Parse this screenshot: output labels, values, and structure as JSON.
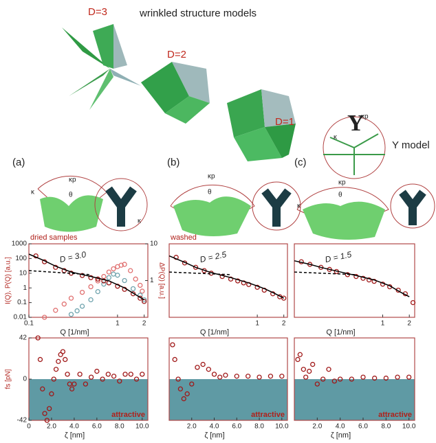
{
  "illustration": {
    "title": "wrinkled structure models",
    "models": [
      "D=3",
      "D=2",
      "D=1"
    ],
    "y_model": "Y model",
    "y_glyph": "Y",
    "panels": [
      "(a)",
      "(b)",
      "(c)"
    ],
    "angle_labels": [
      "κp",
      "θ",
      "κ"
    ]
  },
  "chart_data": [
    {
      "type": "scatter",
      "subtitle": "dried samples",
      "annotation": "D = 3.0",
      "xlabel": "Q [1/nm]",
      "ylabel": "I(Q), P(Q) [a.u.]",
      "y2label": "ΔP(Q) [a.u.]",
      "log_x": true,
      "log_y": true,
      "xlim": [
        0.1,
        2.2
      ],
      "ylim": [
        0.01,
        1000
      ],
      "xticks": [
        0.1,
        1,
        2
      ],
      "yticks": [
        1000,
        100,
        10,
        1,
        0.1,
        0.01
      ],
      "y2lim": [
        0.1,
        10
      ],
      "y2ticks": [
        10,
        1
      ],
      "series": [
        {
          "style": "markers",
          "color": "#e07070",
          "x": [
            0.15,
            0.2,
            0.25,
            0.3,
            0.4,
            0.5,
            0.6,
            0.7,
            0.8,
            0.9,
            1.0,
            1.1,
            1.2,
            1.4,
            1.6,
            1.8,
            1.9
          ],
          "values": [
            0.01,
            0.03,
            0.08,
            0.2,
            0.5,
            1.2,
            3,
            6,
            12,
            20,
            28,
            35,
            40,
            15,
            4,
            1.5,
            0.6
          ]
        },
        {
          "style": "markers",
          "axis": "y2",
          "color": "#6fa3ad",
          "x": [
            0.3,
            0.35,
            0.4,
            0.5,
            0.6,
            0.7,
            0.8,
            0.9,
            1.0,
            1.2,
            1.5,
            1.8,
            2.0
          ],
          "values": [
            0.12,
            0.15,
            0.2,
            0.3,
            0.5,
            0.8,
            1.2,
            1.5,
            1.4,
            1.0,
            0.6,
            0.4,
            0.3
          ]
        },
        {
          "style": "markers",
          "color": "#a01818",
          "x": [
            0.12,
            0.15,
            0.2,
            0.25,
            0.3,
            0.4,
            0.5,
            0.6,
            0.7,
            0.8,
            1.0,
            1.2,
            1.5,
            1.8,
            2.0
          ],
          "values": [
            150,
            60,
            25,
            15,
            10,
            7,
            5,
            4,
            3,
            2.2,
            1.3,
            0.8,
            0.4,
            0.2,
            0.12
          ]
        },
        {
          "style": "line",
          "color": "#000000",
          "x": [
            0.1,
            0.15,
            0.2,
            0.3,
            0.5,
            0.8,
            1.2,
            1.6,
            2.0
          ],
          "values": [
            200,
            70,
            30,
            12,
            6,
            3,
            1,
            0.35,
            0.15
          ]
        },
        {
          "style": "dashed",
          "color": "#000000",
          "x": [
            0.1,
            0.5
          ],
          "values": [
            15,
            8
          ]
        }
      ]
    },
    {
      "type": "scatter",
      "subtitle": "washed",
      "annotation": "D = 2.5",
      "xlabel": "Q [1/nm]",
      "log_x": true,
      "log_y": true,
      "xlim": [
        0.1,
        2.2
      ],
      "ylim": [
        0.01,
        1000
      ],
      "xticks": [
        1,
        2
      ],
      "series": [
        {
          "style": "markers",
          "color": "#a01818",
          "x": [
            0.12,
            0.15,
            0.2,
            0.25,
            0.3,
            0.4,
            0.5,
            0.6,
            0.7,
            0.8,
            1.0,
            1.2,
            1.5,
            1.8,
            2.0
          ],
          "values": [
            120,
            50,
            25,
            15,
            10,
            6,
            4,
            3,
            2.2,
            1.7,
            1.1,
            0.7,
            0.4,
            0.25,
            0.2
          ]
        },
        {
          "style": "line",
          "color": "#000000",
          "x": [
            0.1,
            0.15,
            0.2,
            0.3,
            0.5,
            0.8,
            1.2,
            1.6,
            2.0
          ],
          "values": [
            150,
            55,
            25,
            11,
            5,
            2.2,
            0.9,
            0.4,
            0.2
          ]
        },
        {
          "style": "dashed",
          "color": "#000000",
          "x": [
            0.1,
            0.5
          ],
          "values": [
            12,
            8
          ]
        }
      ]
    },
    {
      "type": "scatter",
      "annotation": "D = 1.5",
      "xlabel": "Q [1/nm]",
      "log_x": true,
      "log_y": true,
      "xlim": [
        0.1,
        2.3
      ],
      "ylim": [
        0.01,
        1000
      ],
      "xticks": [
        1,
        2
      ],
      "series": [
        {
          "style": "markers",
          "color": "#a01818",
          "x": [
            0.12,
            0.15,
            0.2,
            0.25,
            0.3,
            0.4,
            0.5,
            0.6,
            0.7,
            0.8,
            1.0,
            1.2,
            1.5,
            1.8,
            2.2
          ],
          "values": [
            60,
            40,
            25,
            18,
            13,
            8,
            6,
            4.5,
            3.5,
            2.8,
            1.8,
            1.2,
            0.7,
            0.4,
            0.1
          ]
        },
        {
          "style": "line",
          "color": "#000000",
          "x": [
            0.1,
            0.15,
            0.2,
            0.3,
            0.5,
            0.8,
            1.2,
            1.6,
            2.0
          ],
          "values": [
            70,
            40,
            25,
            14,
            7,
            3.5,
            1.4,
            0.5,
            0.25
          ]
        },
        {
          "style": "dashed",
          "color": "#000000",
          "x": [
            0.1,
            0.5
          ],
          "values": [
            12,
            8
          ]
        }
      ]
    },
    {
      "type": "force",
      "annotation": "attractive",
      "xlabel": "ζ [nm]",
      "ylabel": "fs [pN]",
      "xlim": [
        0,
        10.5
      ],
      "ylim": [
        -42,
        42
      ],
      "xticks": [
        0,
        {
          "value": 2,
          "label": "2.0"
        },
        {
          "value": 4,
          "label": "4.0"
        },
        {
          "value": 6,
          "label": "6.0"
        },
        {
          "value": 8,
          "label": "8.0"
        },
        {
          "value": 10,
          "label": "10.0"
        }
      ],
      "yticks": [
        42,
        0,
        -42
      ],
      "series": [
        {
          "style": "markers",
          "color": "#a01818",
          "x": [
            0.8,
            1.0,
            1.2,
            1.4,
            1.6,
            1.8,
            2.0,
            2.2,
            2.4,
            2.6,
            2.8,
            3.0,
            3.2,
            3.4,
            3.6,
            3.8,
            4.0,
            4.5,
            5,
            5.5,
            6,
            6.5,
            7,
            7.5,
            8,
            8.5,
            9,
            9.5,
            10
          ],
          "values": [
            42,
            20,
            -10,
            -35,
            -42,
            -30,
            -15,
            0,
            10,
            18,
            25,
            28,
            20,
            5,
            -5,
            -10,
            -5,
            5,
            -5,
            2,
            8,
            0,
            5,
            3,
            -2,
            5,
            5,
            0,
            5
          ]
        }
      ]
    },
    {
      "type": "force",
      "annotation": "attractive",
      "xlabel": "ζ [nm]",
      "xlim": [
        0,
        10.5
      ],
      "ylim": [
        -42,
        42
      ],
      "xticks": [
        {
          "value": 2,
          "label": "2.0"
        },
        {
          "value": 4,
          "label": "4.0"
        },
        {
          "value": 6,
          "label": "6.0"
        },
        {
          "value": 8,
          "label": "8.0"
        },
        {
          "value": 10,
          "label": "10.0"
        }
      ],
      "series": [
        {
          "style": "markers",
          "color": "#a01818",
          "x": [
            0.3,
            0.5,
            0.8,
            1.0,
            1.3,
            1.6,
            2.0,
            2.5,
            3,
            3.5,
            4,
            4.5,
            5,
            6,
            7,
            8,
            9,
            10
          ],
          "values": [
            35,
            20,
            0,
            -10,
            -20,
            -15,
            -5,
            12,
            15,
            10,
            5,
            2,
            4,
            3,
            3,
            2,
            3,
            3
          ]
        }
      ]
    },
    {
      "type": "force",
      "annotation": "attractive",
      "xlabel": "ζ [nm]",
      "xlim": [
        0,
        10.5
      ],
      "ylim": [
        -42,
        42
      ],
      "xticks": [
        {
          "value": 2,
          "label": "2.0"
        },
        {
          "value": 4,
          "label": "4.0"
        },
        {
          "value": 6,
          "label": "6.0"
        },
        {
          "value": 8,
          "label": "8.0"
        },
        {
          "value": 10,
          "label": "10.0"
        }
      ],
      "series": [
        {
          "style": "markers",
          "color": "#a01818",
          "x": [
            0.3,
            0.5,
            0.8,
            1.0,
            1.3,
            1.6,
            2.0,
            2.5,
            3.0,
            3.5,
            4,
            5,
            6,
            7,
            8,
            9,
            10
          ],
          "values": [
            20,
            25,
            10,
            2,
            8,
            15,
            -5,
            0,
            10,
            -2,
            0,
            0,
            2,
            1,
            1,
            2,
            2
          ]
        }
      ]
    }
  ]
}
